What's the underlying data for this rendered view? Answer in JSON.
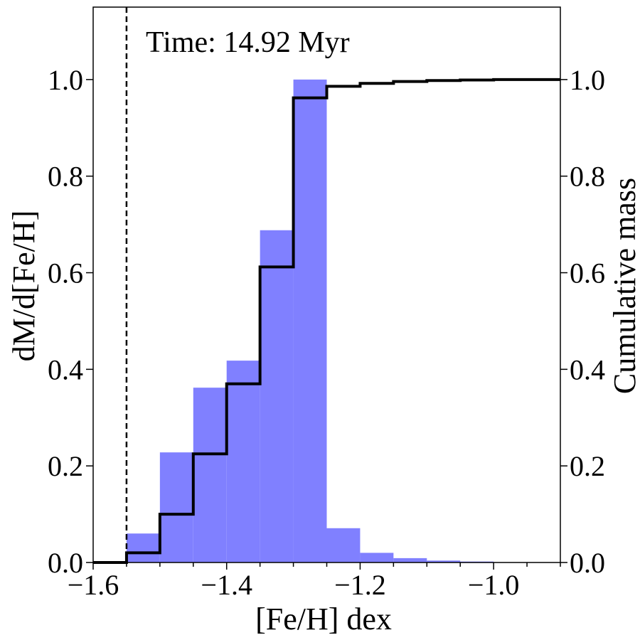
{
  "chart_data": {
    "type": "bar",
    "annotation": "Time: 14.92 Myr",
    "xlabel": "[Fe/H] dex",
    "ylabel": "dM/d[Fe/H]",
    "ylabel_right": "Cumulative mass",
    "xlim": [
      -1.6,
      -0.9
    ],
    "ylim": [
      0.0,
      1.15
    ],
    "ylim_right": [
      0.0,
      1.15
    ],
    "x_ticks": [
      -1.6,
      -1.4,
      -1.2,
      -1.0
    ],
    "x_tick_labels": [
      "−1.6",
      "−1.4",
      "−1.2",
      "−1.0"
    ],
    "y_ticks": [
      0.0,
      0.2,
      0.4,
      0.6,
      0.8,
      1.0
    ],
    "y_tick_labels": [
      "0.0",
      "0.2",
      "0.4",
      "0.6",
      "0.8",
      "1.0"
    ],
    "y_right_tick_labels": [
      "0.0",
      "0.2",
      "0.4",
      "0.6",
      "0.8",
      "1.0"
    ],
    "bin_edges": [
      -1.6,
      -1.55,
      -1.5,
      -1.45,
      -1.4,
      -1.35,
      -1.3,
      -1.25,
      -1.2,
      -1.15,
      -1.1,
      -1.05,
      -1.0,
      -0.95,
      -0.9
    ],
    "histogram": {
      "values": [
        0.0,
        0.06,
        0.228,
        0.362,
        0.418,
        0.688,
        1.0,
        0.071,
        0.02,
        0.009,
        0.004,
        0.002,
        0.0,
        0.0
      ],
      "color": "#8080ff"
    },
    "cumulative": {
      "values": [
        0.0,
        0.02,
        0.1,
        0.225,
        0.37,
        0.612,
        0.962,
        0.986,
        0.992,
        0.996,
        0.998,
        0.999,
        1.0,
        1.0
      ],
      "color": "#000000"
    },
    "vline": {
      "x": -1.55,
      "style": "dashed",
      "color": "#000000"
    }
  }
}
